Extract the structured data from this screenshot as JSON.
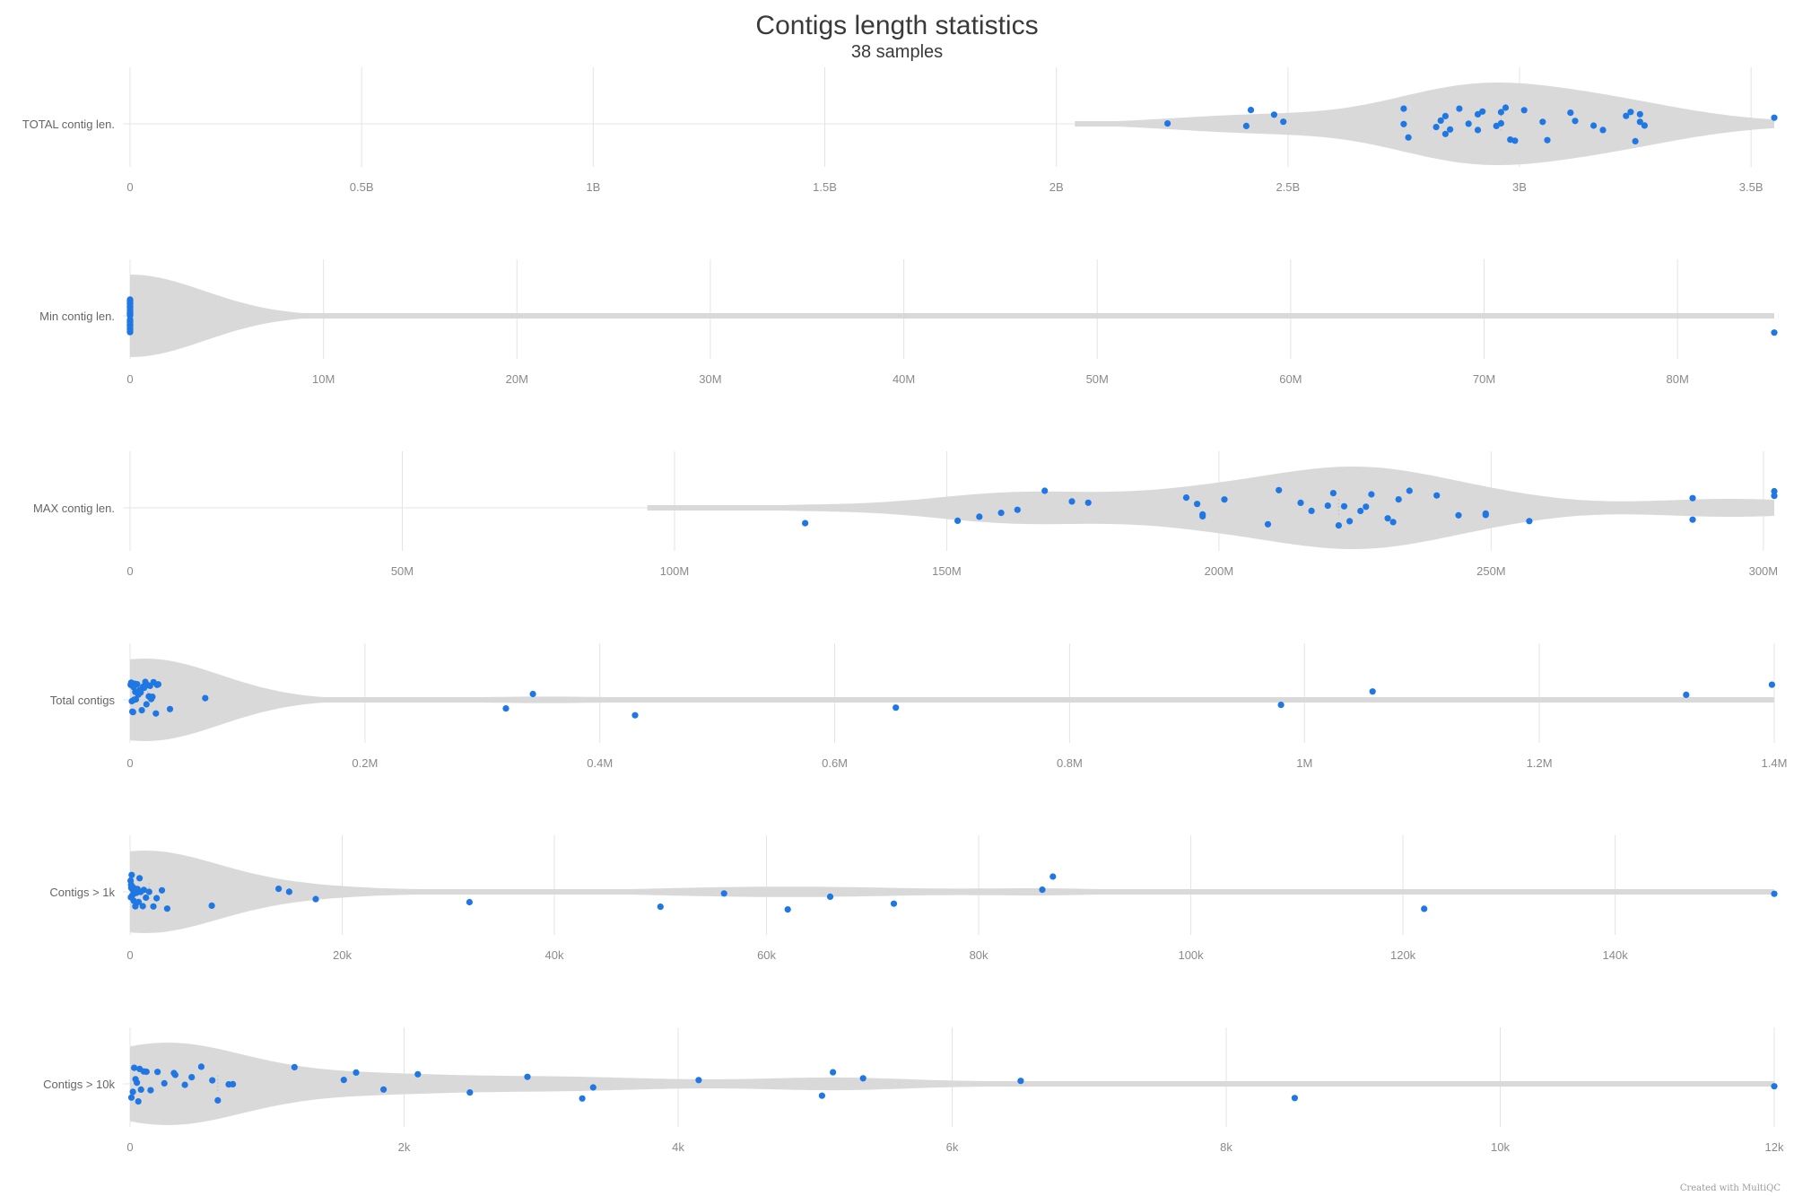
{
  "title": "Contigs length statistics",
  "subtitle": "38 samples",
  "credit": "Created with MultiQC",
  "colors": {
    "point": "#1f77e4",
    "violin": "#d9d9d9",
    "grid": "#e4e4e4",
    "median": "#c4c4c4"
  },
  "chart_data": {
    "type": "violin",
    "title": "Contigs length statistics",
    "subtitle": "38 samples",
    "panels": [
      {
        "name": "TOTAL contig len.",
        "xlim": [
          0,
          3550000000
        ],
        "ticks": [
          0,
          500000000,
          1000000000,
          1500000000,
          2000000000,
          2500000000,
          3000000000,
          3500000000
        ],
        "tick_labels": [
          "0",
          "0.5B",
          "1B",
          "1.5B",
          "2B",
          "2.5B",
          "3B",
          "3.5B"
        ],
        "violin_start": 2040000000,
        "violin_end": 3550000000,
        "points": [
          2240000000,
          2410000000,
          2420000000,
          2470000000,
          2490000000,
          2750000000,
          2750000000,
          2760000000,
          2820000000,
          2830000000,
          2840000000,
          2840000000,
          2850000000,
          2870000000,
          2890000000,
          2910000000,
          2910000000,
          2920000000,
          2950000000,
          2960000000,
          2960000000,
          2970000000,
          2980000000,
          2990000000,
          3010000000,
          3050000000,
          3060000000,
          3110000000,
          3120000000,
          3160000000,
          3180000000,
          3230000000,
          3240000000,
          3250000000,
          3260000000,
          3260000000,
          3270000000,
          3550000000
        ]
      },
      {
        "name": "Min contig len.",
        "xlim": [
          0,
          85000000
        ],
        "ticks": [
          0,
          10000000,
          20000000,
          30000000,
          40000000,
          50000000,
          60000000,
          70000000,
          80000000
        ],
        "tick_labels": [
          "0",
          "10M",
          "20M",
          "30M",
          "40M",
          "50M",
          "60M",
          "70M",
          "80M"
        ],
        "violin_start": 0,
        "violin_end": 85000000,
        "points": [
          200,
          200,
          200,
          200,
          200,
          200,
          200,
          200,
          200,
          200,
          200,
          200,
          200,
          200,
          200,
          200,
          200,
          200,
          200,
          200,
          200,
          200,
          200,
          200,
          200,
          200,
          200,
          200,
          200,
          200,
          200,
          200,
          200,
          200,
          200,
          200,
          200,
          85000000
        ]
      },
      {
        "name": "MAX contig len.",
        "xlim": [
          0,
          302000000
        ],
        "ticks": [
          0,
          50000000,
          100000000,
          150000000,
          200000000,
          250000000,
          300000000
        ],
        "tick_labels": [
          "0",
          "50M",
          "100M",
          "150M",
          "200M",
          "250M",
          "300M"
        ],
        "violin_start": 95000000,
        "violin_end": 302000000,
        "points": [
          124000000,
          152000000,
          156000000,
          160000000,
          163000000,
          168000000,
          173000000,
          176000000,
          194000000,
          196000000,
          197000000,
          197000000,
          201000000,
          209000000,
          211000000,
          215000000,
          217000000,
          220000000,
          221000000,
          222000000,
          223000000,
          224000000,
          226000000,
          227000000,
          228000000,
          231000000,
          232000000,
          233000000,
          235000000,
          240000000,
          244000000,
          249000000,
          249000000,
          257000000,
          287000000,
          287000000,
          302000000,
          302000000
        ]
      },
      {
        "name": "Total contigs",
        "xlim": [
          0,
          1400000
        ],
        "ticks": [
          0,
          200000,
          400000,
          600000,
          800000,
          1000000,
          1200000,
          1400000
        ],
        "tick_labels": [
          "0",
          "0.2M",
          "0.4M",
          "0.6M",
          "0.8M",
          "1M",
          "1.2M",
          "1.4M"
        ],
        "violin_start": 0,
        "violin_end": 1400000,
        "points": [
          500,
          1000,
          1500,
          2000,
          2500,
          3000,
          3500,
          4000,
          4500,
          5000,
          6000,
          7000,
          8000,
          9000,
          10000,
          11000,
          12000,
          13000,
          14000,
          15000,
          16000,
          17000,
          18000,
          19000,
          20000,
          34000,
          64000,
          320000,
          343000,
          430000,
          652000,
          980000,
          1058000,
          1325000,
          1398000,
          22000,
          23000,
          24000
        ]
      },
      {
        "name": "Contigs > 1k",
        "xlim": [
          0,
          155000
        ],
        "ticks": [
          0,
          20000,
          40000,
          60000,
          80000,
          100000,
          120000,
          140000
        ],
        "tick_labels": [
          "0",
          "20k",
          "40k",
          "60k",
          "80k",
          "100k",
          "120k",
          "140k"
        ],
        "violin_start": 0,
        "violin_end": 155000,
        "points": [
          50,
          100,
          150,
          200,
          250,
          300,
          400,
          500,
          600,
          700,
          900,
          1200,
          1500,
          1800,
          2200,
          2500,
          3000,
          3500,
          7700,
          14000,
          15000,
          17500,
          32000,
          50000,
          56000,
          62000,
          66000,
          72000,
          86000,
          87000,
          122000,
          155000,
          80,
          120,
          350,
          800,
          1000,
          1300
        ]
      },
      {
        "name": "Contigs > 10k",
        "xlim": [
          0,
          12000
        ],
        "ticks": [
          0,
          2000,
          4000,
          6000,
          8000,
          10000,
          12000
        ],
        "tick_labels": [
          "0",
          "2k",
          "4k",
          "6k",
          "8k",
          "10k",
          "12k"
        ],
        "violin_start": 0,
        "violin_end": 12000,
        "points": [
          10,
          20,
          30,
          40,
          50,
          60,
          80,
          100,
          150,
          200,
          320,
          400,
          450,
          520,
          640,
          720,
          1200,
          1560,
          1650,
          1850,
          2100,
          2480,
          2900,
          3300,
          3380,
          4150,
          5050,
          5130,
          5350,
          6500,
          8500,
          12000,
          70,
          120,
          250,
          330,
          600,
          750
        ]
      }
    ]
  }
}
